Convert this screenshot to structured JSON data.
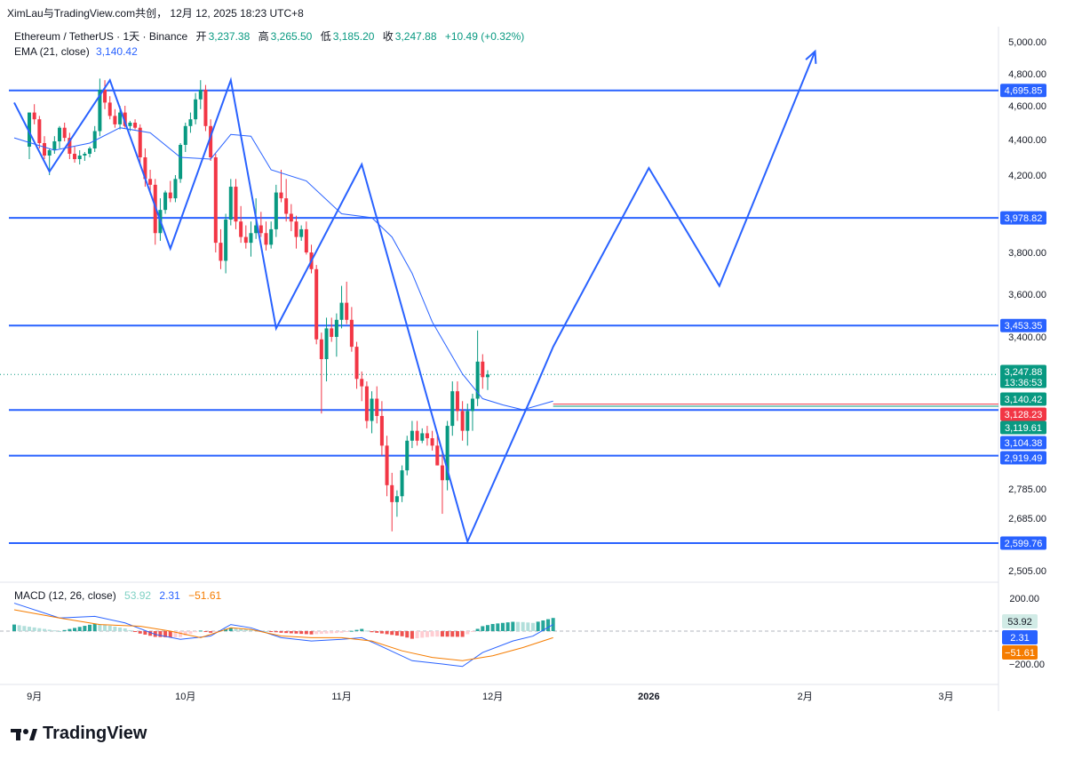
{
  "header": {
    "attribution": "XimLau与TradingView.com共创， 12月 12, 2025 18:23 UTC+8"
  },
  "legend": {
    "symbol": "Ethereum / TetherUS · 1天 · Binance",
    "open_label": "开",
    "open": "3,237.38",
    "high_label": "高",
    "high": "3,265.50",
    "low_label": "低",
    "low": "3,185.20",
    "close_label": "收",
    "close": "3,247.88",
    "change": "+10.49 (+0.32%)",
    "ema_label": "EMA (21, close)",
    "ema_value": "3,140.42"
  },
  "macd_legend": {
    "label": "MACD (12, 26, close)",
    "hist": "53.92",
    "macd": "2.31",
    "signal": "−51.61"
  },
  "branding": {
    "logo_text": "TradingView"
  },
  "colors": {
    "up": "#089981",
    "down": "#f23645",
    "line": "#2962ff",
    "ema": "#2962ff",
    "signal": "#f57c00",
    "hist_up": "#26a69a",
    "hist_down": "#ef5350"
  },
  "chart_data": {
    "type": "candlestick",
    "price_axis": {
      "ticks": [
        "5,000.00",
        "4,800.00",
        "4,600.00",
        "4,400.00",
        "4,200.00",
        "3,800.00",
        "3,600.00",
        "3,400.00",
        "2,785.00",
        "2,685.00",
        "2,505.00"
      ]
    },
    "time_axis": {
      "labels": [
        {
          "label": "9月",
          "day": 1
        },
        {
          "label": "10月",
          "day": 31
        },
        {
          "label": "11月",
          "day": 62
        },
        {
          "label": "12月",
          "day": 92
        },
        {
          "label": "2026",
          "day": 123
        },
        {
          "label": "2月",
          "day": 154
        },
        {
          "label": "3月",
          "day": 182
        }
      ]
    },
    "horizontal_levels": [
      {
        "value": 4695.85,
        "label": "4,695.85"
      },
      {
        "value": 3978.82,
        "label": "3,978.82"
      },
      {
        "value": 3453.35,
        "label": "3,453.35"
      },
      {
        "value": 3104.38,
        "label": "3,104.38"
      },
      {
        "value": 2919.49,
        "label": "2,919.49"
      },
      {
        "value": 2599.76,
        "label": "2,599.76"
      }
    ],
    "price_tags": [
      {
        "value": 3247.88,
        "label": "3,247.88",
        "sub": "13:36:53",
        "color": "#089981"
      },
      {
        "value": 3140.42,
        "label": "3,140.42",
        "color": "#089981"
      },
      {
        "value": 3128.23,
        "label": "3,128.23",
        "color": "#f23645"
      },
      {
        "value": 3119.61,
        "label": "3,119.61",
        "color": "#089981"
      },
      {
        "value": 3104.38,
        "label": "3,104.38",
        "color": "#2962ff"
      },
      {
        "value": 2919.49,
        "label": "2,919.49",
        "color": "#2962ff"
      }
    ],
    "zigzag": [
      {
        "day": -3,
        "price": 4620
      },
      {
        "day": 4,
        "price": 4220
      },
      {
        "day": 16,
        "price": 4760
      },
      {
        "day": 28,
        "price": 3820
      },
      {
        "day": 40,
        "price": 4760
      },
      {
        "day": 49,
        "price": 3440
      },
      {
        "day": 66,
        "price": 4260
      },
      {
        "day": 87,
        "price": 2605
      },
      {
        "day": 100,
        "price": 3170
      },
      {
        "day": 104,
        "price": 3360
      },
      {
        "day": 123,
        "price": 4240
      },
      {
        "day": 137,
        "price": 3640
      },
      {
        "day": 156,
        "price": 4940
      }
    ],
    "last_close": 3247.88,
    "ema": [
      [
        -3,
        4410
      ],
      [
        5,
        4340
      ],
      [
        12,
        4380
      ],
      [
        18,
        4470
      ],
      [
        24,
        4440
      ],
      [
        30,
        4300
      ],
      [
        36,
        4290
      ],
      [
        40,
        4430
      ],
      [
        44,
        4420
      ],
      [
        48,
        4230
      ],
      [
        55,
        4170
      ],
      [
        62,
        4000
      ],
      [
        68,
        3980
      ],
      [
        72,
        3880
      ],
      [
        76,
        3700
      ],
      [
        80,
        3470
      ],
      [
        86,
        3250
      ],
      [
        90,
        3150
      ],
      [
        94,
        3125
      ],
      [
        98,
        3105
      ],
      [
        104,
        3140
      ]
    ],
    "macd": {
      "hist_range": [
        -200,
        200
      ],
      "ticks": [
        "200.00",
        "−200.00"
      ],
      "macd_line": [
        [
          -3,
          170
        ],
        [
          6,
          80
        ],
        [
          13,
          90
        ],
        [
          19,
          50
        ],
        [
          25,
          -20
        ],
        [
          30,
          -50
        ],
        [
          36,
          -30
        ],
        [
          40,
          40
        ],
        [
          44,
          20
        ],
        [
          50,
          -40
        ],
        [
          56,
          -60
        ],
        [
          62,
          -50
        ],
        [
          66,
          -40
        ],
        [
          69,
          -80
        ],
        [
          76,
          -180
        ],
        [
          82,
          -200
        ],
        [
          86,
          -215
        ],
        [
          90,
          -130
        ],
        [
          96,
          -60
        ],
        [
          100,
          -30
        ],
        [
          104,
          40
        ]
      ],
      "signal_line": [
        [
          -3,
          130
        ],
        [
          6,
          80
        ],
        [
          14,
          40
        ],
        [
          22,
          30
        ],
        [
          28,
          0
        ],
        [
          34,
          -40
        ],
        [
          40,
          20
        ],
        [
          44,
          10
        ],
        [
          50,
          -30
        ],
        [
          56,
          -40
        ],
        [
          62,
          -40
        ],
        [
          68,
          -60
        ],
        [
          74,
          -120
        ],
        [
          80,
          -160
        ],
        [
          86,
          -180
        ],
        [
          92,
          -150
        ],
        [
          98,
          -100
        ],
        [
          104,
          -40
        ]
      ]
    },
    "candles": [
      [
        4360,
        4560,
        4290,
        4560
      ],
      [
        4560,
        4610,
        4490,
        4520
      ],
      [
        4520,
        4540,
        4350,
        4380
      ],
      [
        4380,
        4420,
        4290,
        4310
      ],
      [
        4310,
        4350,
        4200,
        4340
      ],
      [
        4340,
        4420,
        4320,
        4390
      ],
      [
        4390,
        4480,
        4350,
        4470
      ],
      [
        4470,
        4500,
        4390,
        4410
      ],
      [
        4410,
        4440,
        4290,
        4320
      ],
      [
        4320,
        4360,
        4270,
        4290
      ],
      [
        4290,
        4340,
        4260,
        4310
      ],
      [
        4310,
        4330,
        4280,
        4320
      ],
      [
        4320,
        4360,
        4300,
        4350
      ],
      [
        4350,
        4480,
        4330,
        4450
      ],
      [
        4450,
        4770,
        4420,
        4700
      ],
      [
        4700,
        4760,
        4580,
        4620
      ],
      [
        4620,
        4660,
        4520,
        4540
      ],
      [
        4540,
        4580,
        4470,
        4490
      ],
      [
        4490,
        4600,
        4460,
        4560
      ],
      [
        4560,
        4600,
        4470,
        4480
      ],
      [
        4480,
        4510,
        4450,
        4500
      ],
      [
        4500,
        4520,
        4460,
        4470
      ],
      [
        4470,
        4490,
        4260,
        4300
      ],
      [
        4300,
        4350,
        4140,
        4180
      ],
      [
        4180,
        4230,
        4100,
        4150
      ],
      [
        4150,
        4180,
        3840,
        3900
      ],
      [
        3900,
        4080,
        3860,
        4020
      ],
      [
        4020,
        4120,
        4000,
        4110
      ],
      [
        4110,
        4170,
        4060,
        4080
      ],
      [
        4080,
        4200,
        4060,
        4180
      ],
      [
        4180,
        4380,
        4160,
        4370
      ],
      [
        4370,
        4500,
        4330,
        4480
      ],
      [
        4480,
        4560,
        4440,
        4520
      ],
      [
        4520,
        4680,
        4490,
        4640
      ],
      [
        4640,
        4760,
        4580,
        4700
      ],
      [
        4700,
        4730,
        4450,
        4480
      ],
      [
        4480,
        4520,
        4280,
        4300
      ],
      [
        4300,
        4320,
        3800,
        3850
      ],
      [
        3850,
        3920,
        3720,
        3760
      ],
      [
        3760,
        4000,
        3700,
        3970
      ],
      [
        3970,
        4180,
        3940,
        4140
      ],
      [
        4140,
        4180,
        3920,
        3960
      ],
      [
        3960,
        4040,
        3850,
        3880
      ],
      [
        3880,
        3940,
        3820,
        3850
      ],
      [
        3850,
        3960,
        3780,
        3900
      ],
      [
        3900,
        4080,
        3870,
        3940
      ],
      [
        3940,
        4010,
        3880,
        3900
      ],
      [
        3900,
        3960,
        3810,
        3840
      ],
      [
        3840,
        3960,
        3820,
        3920
      ],
      [
        3920,
        4150,
        3880,
        4110
      ],
      [
        4110,
        4230,
        4060,
        4080
      ],
      [
        4080,
        4180,
        3960,
        4000
      ],
      [
        4000,
        4050,
        3910,
        3960
      ],
      [
        3960,
        3990,
        3820,
        3880
      ],
      [
        3880,
        3940,
        3860,
        3920
      ],
      [
        3920,
        3960,
        3790,
        3800
      ],
      [
        3800,
        3840,
        3700,
        3720
      ],
      [
        3720,
        3740,
        3370,
        3390
      ],
      [
        3390,
        3420,
        3090,
        3310
      ],
      [
        3310,
        3490,
        3220,
        3440
      ],
      [
        3440,
        3490,
        3380,
        3400
      ],
      [
        3400,
        3510,
        3320,
        3480
      ],
      [
        3480,
        3640,
        3440,
        3560
      ],
      [
        3560,
        3660,
        3460,
        3480
      ],
      [
        3480,
        3540,
        3340,
        3360
      ],
      [
        3360,
        3380,
        3190,
        3230
      ],
      [
        3230,
        3260,
        3140,
        3200
      ],
      [
        3200,
        3220,
        3030,
        3060
      ],
      [
        3060,
        3180,
        3010,
        3150
      ],
      [
        3150,
        3200,
        3050,
        3080
      ],
      [
        3080,
        3140,
        2920,
        2960
      ],
      [
        2960,
        3000,
        2760,
        2800
      ],
      [
        2800,
        2850,
        2640,
        2740
      ],
      [
        2740,
        2780,
        2690,
        2760
      ],
      [
        2760,
        2880,
        2740,
        2860
      ],
      [
        2860,
        3000,
        2840,
        2980
      ],
      [
        2980,
        3060,
        2950,
        3020
      ],
      [
        3020,
        3060,
        2960,
        2980
      ],
      [
        2980,
        3030,
        2970,
        3010
      ],
      [
        3010,
        3040,
        2960,
        2990
      ],
      [
        2990,
        3020,
        2940,
        2960
      ],
      [
        2960,
        3000,
        2880,
        2880
      ],
      [
        2880,
        2930,
        2700,
        2820
      ],
      [
        2820,
        3060,
        2780,
        3040
      ],
      [
        3040,
        3220,
        3000,
        3180
      ],
      [
        3180,
        3220,
        3060,
        3100
      ],
      [
        3100,
        3140,
        2980,
        3020
      ],
      [
        3020,
        3130,
        2960,
        3100
      ],
      [
        3100,
        3170,
        3020,
        3150
      ],
      [
        3150,
        3430,
        3120,
        3300
      ],
      [
        3300,
        3330,
        3190,
        3237
      ],
      [
        3237,
        3265,
        3185,
        3248
      ]
    ]
  }
}
